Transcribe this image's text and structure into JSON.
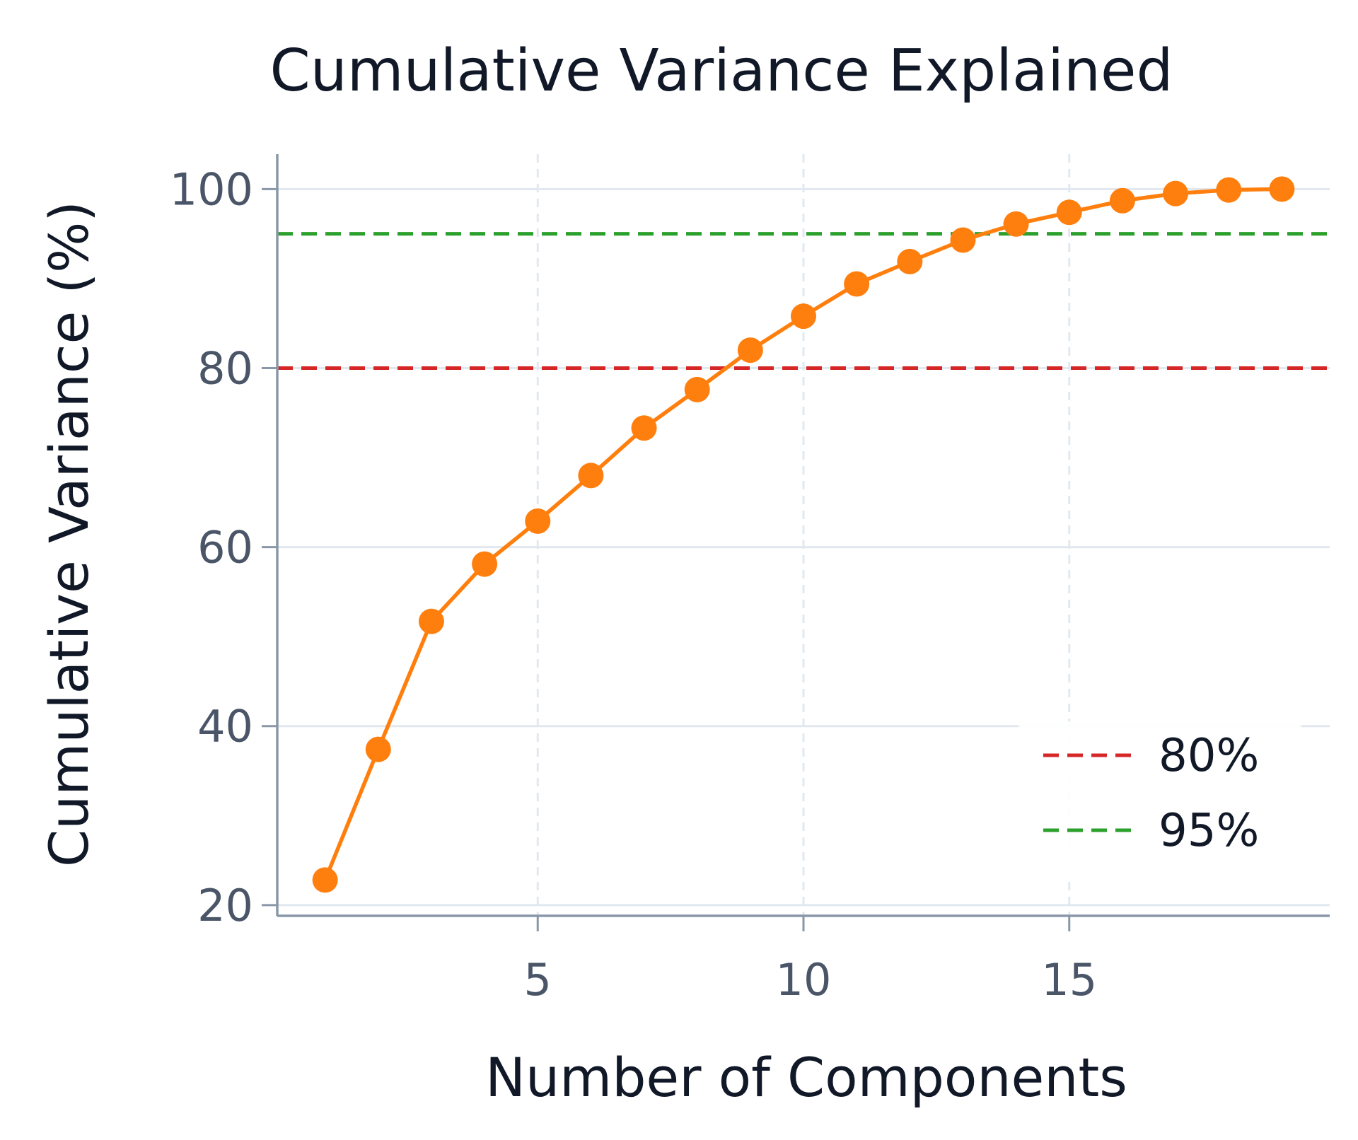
{
  "chart_data": {
    "type": "line",
    "title": "Cumulative Variance Explained",
    "xlabel": "Number of Components",
    "ylabel": "Cumulative Variance (%)",
    "xlim": [
      0.1,
      19.9
    ],
    "ylim": [
      18.8,
      103.9
    ],
    "x_ticks": [
      5,
      10,
      15
    ],
    "y_ticks": [
      20,
      40,
      60,
      80,
      100
    ],
    "grid": true,
    "legend_position": "lower-right",
    "series": [
      {
        "color": "#ff7f0e",
        "marker": "circle",
        "x": [
          1,
          2,
          3,
          4,
          5,
          6,
          7,
          8,
          9,
          10,
          11,
          12,
          13,
          14,
          15,
          16,
          17,
          18,
          19
        ],
        "y": [
          22.8,
          37.4,
          51.7,
          58.1,
          62.9,
          68.0,
          73.3,
          77.6,
          82.0,
          85.8,
          89.4,
          91.9,
          94.3,
          96.1,
          97.4,
          98.7,
          99.5,
          99.9,
          100.0
        ]
      }
    ],
    "reference_lines": [
      {
        "name": "80%",
        "y": 80,
        "color": "#d62728",
        "style": "dashed"
      },
      {
        "name": "95%",
        "y": 95,
        "color": "#2ca02c",
        "style": "dashed"
      }
    ]
  }
}
